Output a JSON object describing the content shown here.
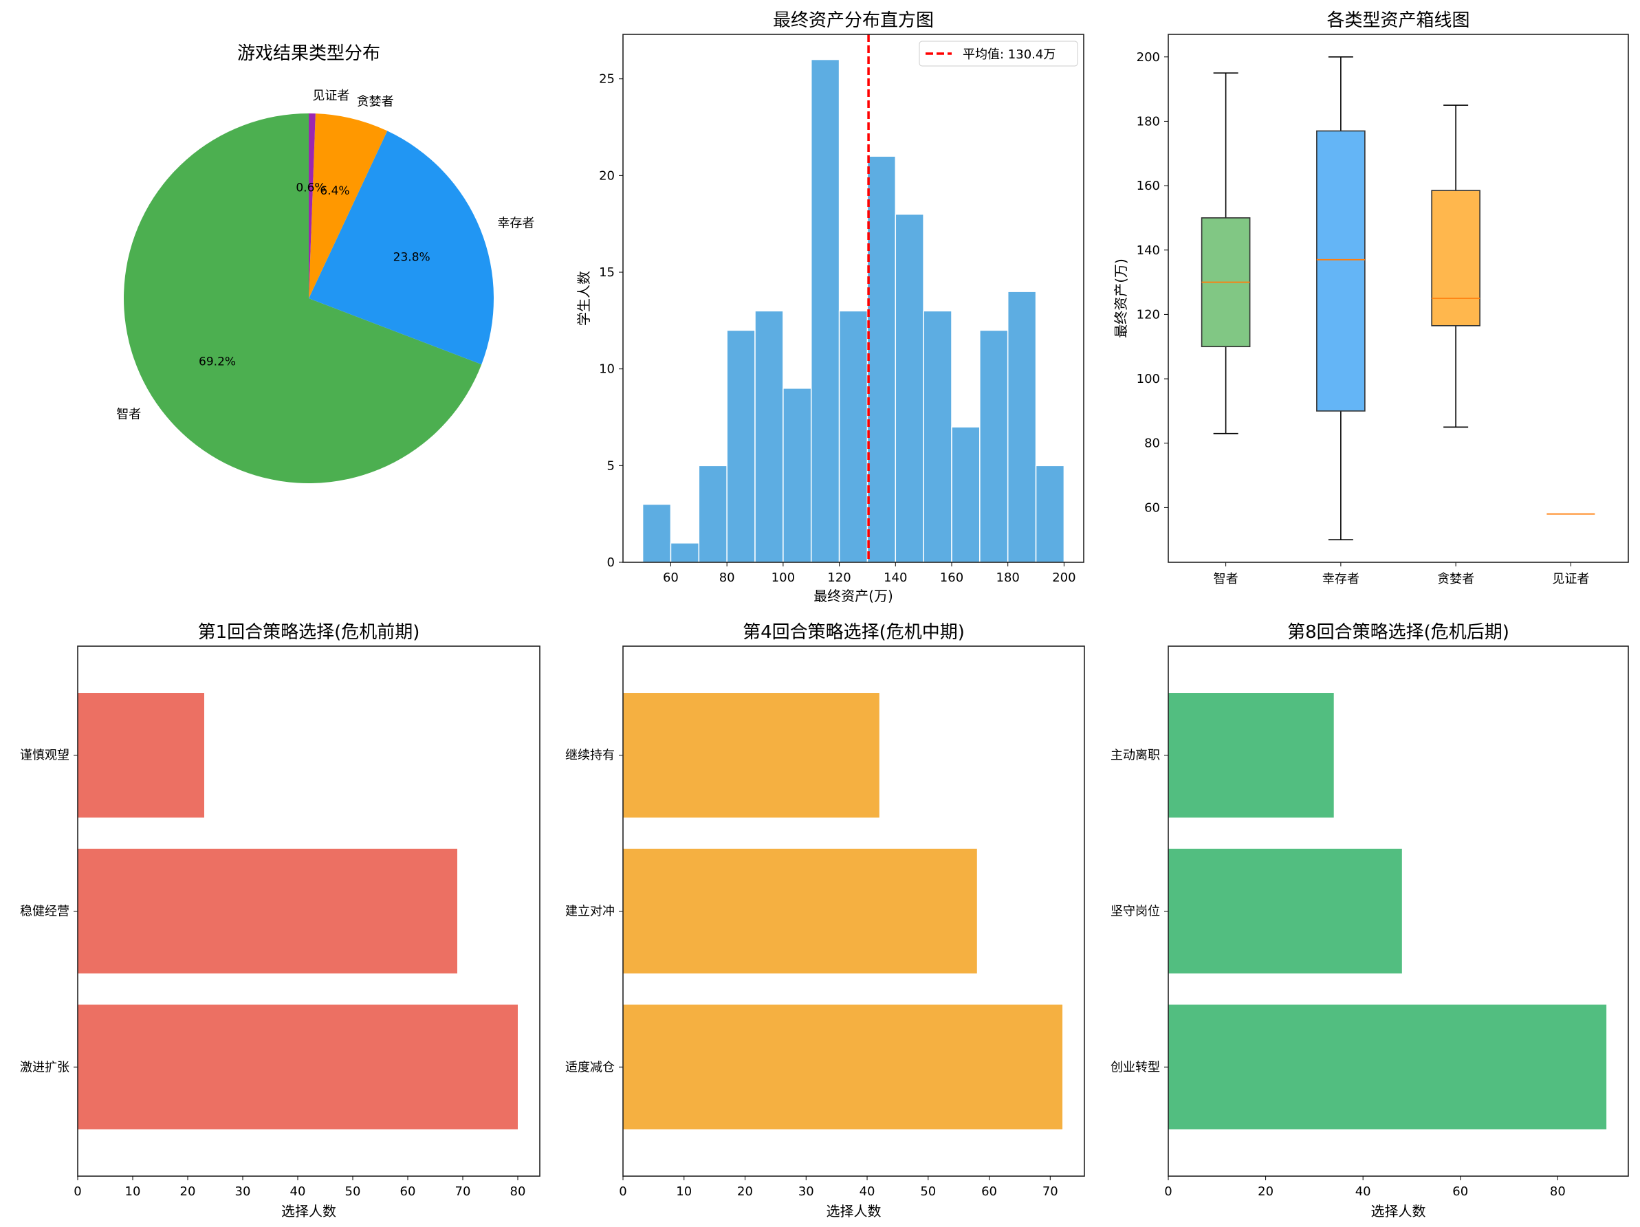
{
  "chart_data": [
    {
      "type": "pie",
      "title": "游戏结果类型分布",
      "labels": [
        "智者",
        "幸存者",
        "贪婪者",
        "见证者"
      ],
      "values": [
        119,
        41,
        11,
        1
      ],
      "percent_labels": [
        "69.2%",
        "23.8%",
        "6.4%",
        "0.6%"
      ],
      "colors": [
        "#4CAF50",
        "#2196F3",
        "#FF9800",
        "#9C27B0"
      ],
      "start_angle": 90,
      "direction": "counterclockwise"
    },
    {
      "type": "bar",
      "subtype": "histogram",
      "title": "最终资产分布直方图",
      "xlabel": "最终资产(万)",
      "ylabel": "学生人数",
      "bin_edges": [
        50,
        60,
        70,
        80,
        90,
        100,
        110,
        120,
        130,
        140,
        150,
        160,
        170,
        180,
        190,
        200
      ],
      "values": [
        3,
        1,
        5,
        12,
        13,
        9,
        26,
        13,
        21,
        18,
        13,
        7,
        12,
        14,
        5
      ],
      "xlim": [
        43,
        207
      ],
      "ylim": [
        0,
        27.3
      ],
      "xticks": [
        60,
        80,
        100,
        120,
        140,
        160,
        180,
        200
      ],
      "yticks": [
        0,
        5,
        10,
        15,
        20,
        25
      ],
      "color": "#5DADE2",
      "mean_line": {
        "value": 130.4,
        "label": "平均值: 130.4万",
        "color": "#FF0000"
      },
      "legend": "top-right"
    },
    {
      "type": "box",
      "title": "各类型资产箱线图",
      "ylabel": "最终资产(万)",
      "categories": [
        "智者",
        "幸存者",
        "贪婪者",
        "见证者"
      ],
      "boxes": [
        {
          "whislo": 83,
          "q1": 110,
          "med": 130,
          "q3": 150,
          "whishi": 195,
          "color": "#81C784"
        },
        {
          "whislo": 50,
          "q1": 90,
          "med": 137,
          "q3": 177,
          "whishi": 200,
          "color": "#64B5F6"
        },
        {
          "whislo": 85,
          "q1": 116.5,
          "med": 125,
          "q3": 158.5,
          "whishi": 185,
          "color": "#FFB74D"
        },
        {
          "whislo": 58,
          "q1": 58,
          "med": 58,
          "q3": 58,
          "whishi": 58,
          "color": "#CE93D8"
        }
      ],
      "ylim": [
        43,
        207
      ],
      "yticks": [
        60,
        80,
        100,
        120,
        140,
        160,
        180,
        200
      ]
    },
    {
      "type": "bar",
      "orientation": "horizontal",
      "title": "第1回合策略选择(危机前期)",
      "xlabel": "选择人数",
      "categories": [
        "激进扩张",
        "稳健经营",
        "谨慎观望"
      ],
      "values": [
        80,
        69,
        23
      ],
      "xlim": [
        0,
        84
      ],
      "xticks": [
        0,
        10,
        20,
        30,
        40,
        50,
        60,
        70,
        80
      ],
      "color": "#EC7063"
    },
    {
      "type": "bar",
      "orientation": "horizontal",
      "title": "第4回合策略选择(危机中期)",
      "xlabel": "选择人数",
      "categories": [
        "适度减仓",
        "建立对冲",
        "继续持有"
      ],
      "values": [
        72,
        58,
        42
      ],
      "xlim": [
        0,
        75.6
      ],
      "xticks": [
        0,
        10,
        20,
        30,
        40,
        50,
        60,
        70
      ],
      "color": "#F5B041"
    },
    {
      "type": "bar",
      "orientation": "horizontal",
      "title": "第8回合策略选择(危机后期)",
      "xlabel": "选择人数",
      "categories": [
        "创业转型",
        "坚守岗位",
        "主动离职"
      ],
      "values": [
        90,
        48,
        34
      ],
      "xlim": [
        0,
        94.5
      ],
      "xticks": [
        0,
        20,
        40,
        60,
        80
      ],
      "color": "#52BE80"
    }
  ]
}
